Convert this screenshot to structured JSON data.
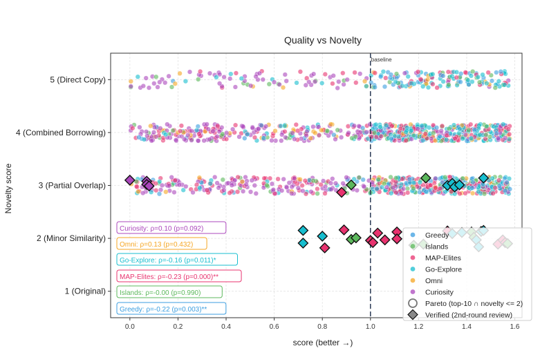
{
  "chart_data": {
    "type": "scatter",
    "title": "Quality vs Novelty",
    "xlabel": "score  (better →)",
    "ylabel": "Novelty score",
    "xlim": [
      -0.08,
      1.63
    ],
    "ylim": [
      0.5,
      5.5
    ],
    "xticks": [
      "0.0",
      "0.2",
      "0.4",
      "0.6",
      "0.8",
      "1.0",
      "1.2",
      "1.4",
      "1.6"
    ],
    "xtick_values": [
      0,
      0.2,
      0.4,
      0.6,
      0.8,
      1.0,
      1.2,
      1.4,
      1.6
    ],
    "yticks": [
      {
        "value": 5,
        "label": "5 (Direct Copy)"
      },
      {
        "value": 4,
        "label": "4 (Combined Borrowing)"
      },
      {
        "value": 3,
        "label": "3 (Partial Overlap)"
      },
      {
        "value": 2,
        "label": "2 (Minor Similarity)"
      },
      {
        "value": 1,
        "label": "1 (Original)"
      }
    ],
    "grid": true,
    "baseline": {
      "x": 1.0,
      "label": "baseline"
    },
    "series": [
      {
        "name": "Greedy",
        "color": "#3b9ee0"
      },
      {
        "name": "Islands",
        "color": "#5cb85c"
      },
      {
        "name": "MAP-Elites",
        "color": "#e8336f"
      },
      {
        "name": "Go-Explore",
        "color": "#17becf"
      },
      {
        "name": "Omni",
        "color": "#f5a623"
      },
      {
        "name": "Curiosity",
        "color": "#ab47bc"
      }
    ],
    "legend_placement": "bottom-right",
    "legend_extra": [
      {
        "label": "Pareto (top-10 ∩ novelty <= 2)",
        "marker": "circle-open"
      },
      {
        "label": "Verified (2nd-round review)",
        "marker": "diamond"
      }
    ],
    "clouds": [
      {
        "y": 5,
        "n": 230,
        "segments": [
          [
            0.0,
            1.0,
            0.38
          ],
          [
            1.0,
            1.58,
            0.62
          ]
        ],
        "weights_low": {
          "Curiosity": 0.55,
          "MAP-Elites": 0.12,
          "Omni": 0.1,
          "Go-Explore": 0.1,
          "Islands": 0.08,
          "Greedy": 0.05
        },
        "weights_high": {
          "Greedy": 0.32,
          "Go-Explore": 0.3,
          "Islands": 0.12,
          "MAP-Elites": 0.14,
          "Curiosity": 0.07,
          "Omni": 0.05
        }
      },
      {
        "y": 4,
        "n": 620,
        "segments": [
          [
            0.0,
            1.0,
            0.38
          ],
          [
            1.0,
            1.58,
            0.62
          ]
        ],
        "weights_low": {
          "Curiosity": 0.5,
          "MAP-Elites": 0.22,
          "Omni": 0.08,
          "Go-Explore": 0.08,
          "Islands": 0.07,
          "Greedy": 0.05
        },
        "weights_high": {
          "Go-Explore": 0.3,
          "MAP-Elites": 0.26,
          "Greedy": 0.16,
          "Islands": 0.14,
          "Curiosity": 0.1,
          "Omni": 0.04
        }
      },
      {
        "y": 3,
        "n": 560,
        "segments": [
          [
            0.0,
            1.0,
            0.38
          ],
          [
            1.0,
            1.58,
            0.62
          ]
        ],
        "weights_low": {
          "Curiosity": 0.48,
          "MAP-Elites": 0.26,
          "Islands": 0.08,
          "Go-Explore": 0.08,
          "Omni": 0.05,
          "Greedy": 0.05
        },
        "weights_high": {
          "Go-Explore": 0.28,
          "MAP-Elites": 0.32,
          "Islands": 0.16,
          "Greedy": 0.12,
          "Curiosity": 0.08,
          "Omni": 0.04
        }
      }
    ],
    "verified_points": [
      {
        "x": 0.0,
        "y": 3.1,
        "series": "Curiosity"
      },
      {
        "x": 0.07,
        "y": 3.08,
        "series": "Curiosity"
      },
      {
        "x": 0.07,
        "y": 3.02,
        "series": "Curiosity"
      },
      {
        "x": 0.08,
        "y": 2.99,
        "series": "Curiosity"
      },
      {
        "x": 0.88,
        "y": 2.87,
        "series": "MAP-Elites"
      },
      {
        "x": 0.92,
        "y": 3.01,
        "series": "Islands"
      },
      {
        "x": 1.23,
        "y": 3.14,
        "series": "Islands"
      },
      {
        "x": 1.32,
        "y": 3.0,
        "series": "Go-Explore"
      },
      {
        "x": 1.34,
        "y": 3.04,
        "series": "Go-Explore"
      },
      {
        "x": 1.35,
        "y": 2.97,
        "series": "Go-Explore"
      },
      {
        "x": 1.37,
        "y": 3.01,
        "series": "Go-Explore"
      },
      {
        "x": 1.47,
        "y": 3.14,
        "series": "Go-Explore"
      },
      {
        "x": 0.72,
        "y": 2.15,
        "series": "Go-Explore"
      },
      {
        "x": 0.72,
        "y": 1.91,
        "series": "Go-Explore"
      },
      {
        "x": 0.8,
        "y": 2.04,
        "series": "Go-Explore"
      },
      {
        "x": 0.81,
        "y": 1.82,
        "series": "MAP-Elites"
      },
      {
        "x": 0.89,
        "y": 2.16,
        "series": "MAP-Elites"
      },
      {
        "x": 0.92,
        "y": 1.98,
        "series": "Islands"
      },
      {
        "x": 0.94,
        "y": 2.01,
        "series": "Islands"
      },
      {
        "x": 1.0,
        "y": 1.96,
        "series": "MAP-Elites"
      },
      {
        "x": 1.01,
        "y": 1.92,
        "series": "MAP-Elites"
      },
      {
        "x": 1.03,
        "y": 2.1,
        "series": "MAP-Elites"
      },
      {
        "x": 1.06,
        "y": 1.97,
        "series": "MAP-Elites"
      },
      {
        "x": 1.11,
        "y": 2.12,
        "series": "MAP-Elites"
      },
      {
        "x": 1.11,
        "y": 1.99,
        "series": "MAP-Elites"
      },
      {
        "x": 1.18,
        "y": 1.87,
        "series": "Islands"
      },
      {
        "x": 1.22,
        "y": 1.89,
        "series": "Islands"
      },
      {
        "x": 1.32,
        "y": 2.14,
        "series": "MAP-Elites"
      },
      {
        "x": 1.34,
        "y": 2.09,
        "series": "Go-Explore"
      },
      {
        "x": 1.38,
        "y": 2.11,
        "series": "Go-Explore"
      },
      {
        "x": 1.42,
        "y": 2.12,
        "series": "Islands"
      },
      {
        "x": 1.43,
        "y": 2.02,
        "series": "Islands"
      },
      {
        "x": 1.44,
        "y": 1.97,
        "series": "Go-Explore"
      },
      {
        "x": 1.45,
        "y": 1.84,
        "series": "Go-Explore"
      },
      {
        "x": 1.46,
        "y": 2.13,
        "series": "Go-Explore"
      },
      {
        "x": 1.47,
        "y": 2.15,
        "series": "Go-Explore"
      },
      {
        "x": 1.53,
        "y": 1.89,
        "series": "MAP-Elites"
      },
      {
        "x": 1.55,
        "y": 1.97,
        "series": "MAP-Elites"
      },
      {
        "x": 1.56,
        "y": 1.92,
        "series": "MAP-Elites"
      },
      {
        "x": 1.57,
        "y": 1.9,
        "series": "Islands"
      }
    ],
    "correlations": [
      {
        "label": "Curiosity: ρ=0.10 (p=0.092)",
        "series": "Curiosity"
      },
      {
        "label": "Omni: ρ=0.13 (p=0.432)",
        "series": "Omni"
      },
      {
        "label": "Go-Explore: ρ=-0.16 (p=0.011)*",
        "series": "Go-Explore"
      },
      {
        "label": "MAP-Elites: ρ=-0.23 (p=0.000)**",
        "series": "MAP-Elites"
      },
      {
        "label": "Islands: ρ=-0.00 (p=0.990)",
        "series": "Islands"
      },
      {
        "label": "Greedy: ρ=-0.22 (p=0.003)**",
        "series": "Greedy"
      }
    ]
  }
}
